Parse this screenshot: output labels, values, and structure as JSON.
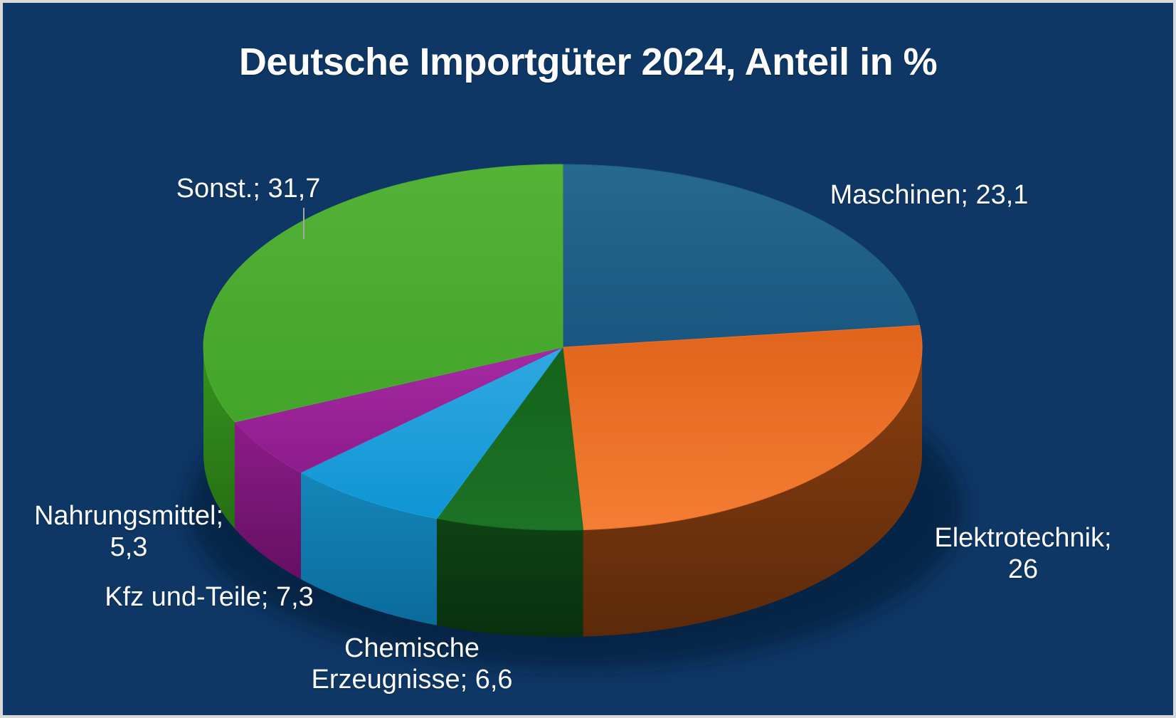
{
  "chart_data": {
    "type": "pie",
    "style": "3d",
    "title": "Deutsche Importgüter 2024, Anteil in %",
    "unit": "%",
    "total": 100,
    "legend": "none",
    "background_color": "#0e3765",
    "border_color": "#d9d9d9",
    "text_color": "#fbfbfb",
    "leader_line_color": "#a6a6a6",
    "slices": [
      {
        "id": "maschinen",
        "label": "Maschinen",
        "value": 23.1,
        "display_value": "23,1",
        "callout_lines": [
          "Maschinen; 23,1"
        ],
        "color": "#1e6086",
        "top_gradient": [
          "#27698e",
          "#195680"
        ],
        "side_gradient": [
          "#174d6d",
          "#103a54"
        ]
      },
      {
        "id": "elektrotechnik",
        "label": "Elektrotechnik",
        "value": 26,
        "display_value": "26",
        "callout_lines": [
          "Elektrotechnik;",
          "26"
        ],
        "color": "#ec6f28",
        "top_gradient": [
          "#e0641b",
          "#f47e33"
        ],
        "side_gradient": [
          "#8a3f10",
          "#5c2a0a"
        ]
      },
      {
        "id": "chemische-erzeugnisse",
        "label": "Chemische Erzeugnisse",
        "value": 6.6,
        "display_value": "6,6",
        "callout_lines": [
          "Chemische",
          "Erzeugnisse; 6,6"
        ],
        "color": "#186b20",
        "top_gradient": [
          "#14621b",
          "#1d7326"
        ],
        "side_gradient": [
          "#0e4214",
          "#09300e"
        ]
      },
      {
        "id": "kfz-und-teile",
        "label": "Kfz und-Teile",
        "value": 7.3,
        "display_value": "7,3",
        "callout_lines": [
          "Kfz und-Teile; 7,3"
        ],
        "color": "#1ba0dc",
        "top_gradient": [
          "#31a8e1",
          "#0e95d3"
        ],
        "side_gradient": [
          "#1486b8",
          "#0b6b9d"
        ]
      },
      {
        "id": "nahrungsmittel",
        "label": "Nahrungsmittel",
        "value": 5.3,
        "display_value": "5,3",
        "callout_lines": [
          "Nahrungsmittel;",
          "5,3"
        ],
        "color": "#9e239b",
        "top_gradient": [
          "#a52aa2",
          "#8d1c8b"
        ],
        "side_gradient": [
          "#8c1d88",
          "#650f63"
        ]
      },
      {
        "id": "sonstige",
        "label": "Sonst.",
        "value": 31.7,
        "display_value": "31,7",
        "callout_lines": [
          "Sonst.; 31,7"
        ],
        "color": "#4dad32",
        "top_gradient": [
          "#54b237",
          "#42a42a"
        ],
        "side_gradient": [
          "#37921f",
          "#266f14"
        ]
      }
    ]
  }
}
